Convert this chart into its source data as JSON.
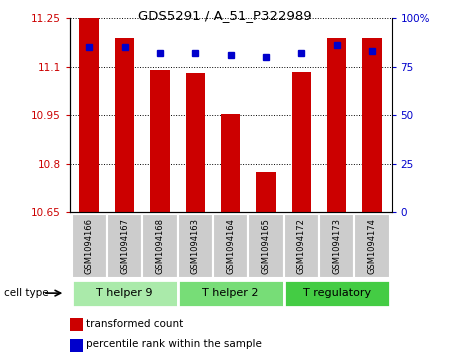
{
  "title": "GDS5291 / A_51_P322989",
  "samples": [
    "GSM1094166",
    "GSM1094167",
    "GSM1094168",
    "GSM1094163",
    "GSM1094164",
    "GSM1094165",
    "GSM1094172",
    "GSM1094173",
    "GSM1094174"
  ],
  "bar_values": [
    11.25,
    11.19,
    11.09,
    11.08,
    10.955,
    10.775,
    11.085,
    11.19,
    11.19
  ],
  "percentile_values": [
    85,
    85,
    82,
    82,
    81,
    80,
    82,
    86,
    83
  ],
  "ylim_left": [
    10.65,
    11.25
  ],
  "ylim_right": [
    0,
    100
  ],
  "yticks_left": [
    10.65,
    10.8,
    10.95,
    11.1,
    11.25
  ],
  "ytick_labels_left": [
    "10.65",
    "10.8",
    "10.95",
    "11.1",
    "11.25"
  ],
  "yticks_right": [
    0,
    25,
    50,
    75,
    100
  ],
  "ytick_labels_right": [
    "0",
    "25",
    "50",
    "75",
    "100%"
  ],
  "bar_color": "#cc0000",
  "dot_color": "#0000cc",
  "bar_bottom": 10.65,
  "bar_width": 0.55,
  "cell_groups": [
    {
      "label": "T helper 9",
      "indices": [
        0,
        1,
        2
      ]
    },
    {
      "label": "T helper 2",
      "indices": [
        3,
        4,
        5
      ]
    },
    {
      "label": "T regulatory",
      "indices": [
        6,
        7,
        8
      ]
    }
  ],
  "cell_group_colors": [
    "#aaeaaa",
    "#77dd77",
    "#44cc44"
  ],
  "sample_box_color": "#cccccc",
  "legend_bar_label": "transformed count",
  "legend_dot_label": "percentile rank within the sample",
  "cell_type_label": "cell type"
}
